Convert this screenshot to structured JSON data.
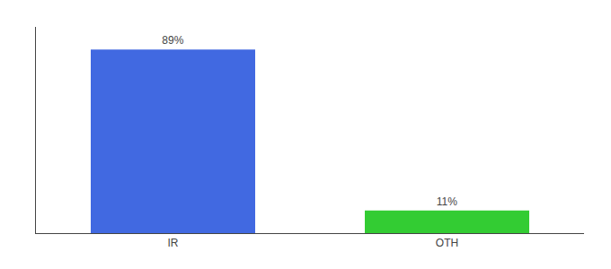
{
  "chart_data": {
    "type": "bar",
    "categories": [
      "IR",
      "OTH"
    ],
    "values": [
      89,
      11
    ],
    "value_labels": [
      "89%",
      "11%"
    ],
    "colors": [
      "#4169e1",
      "#33cc33"
    ],
    "ylim": [
      0,
      100
    ],
    "data_labels": true,
    "tick_labels": "x",
    "grid": false
  }
}
